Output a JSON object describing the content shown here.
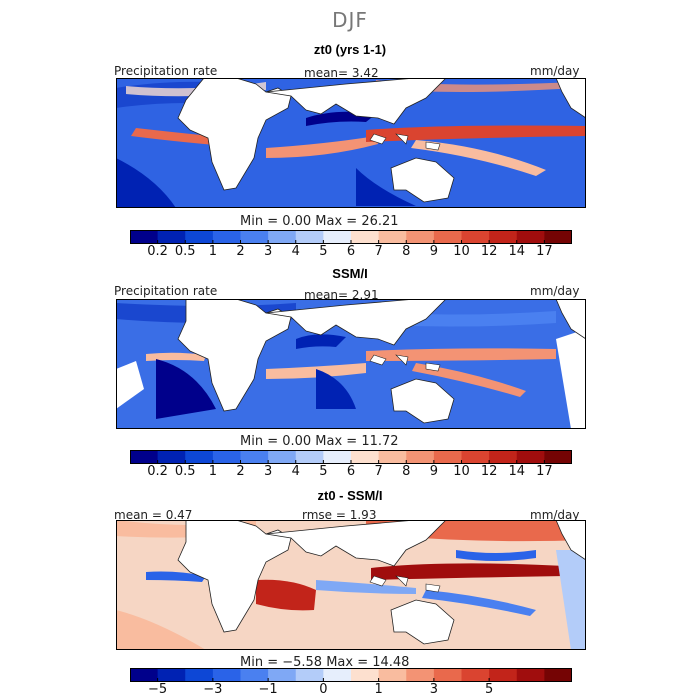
{
  "season": "DJF",
  "panels": [
    {
      "title": "zt0 (yrs 1-1)",
      "left_label": "Precipitation rate",
      "stat": "mean=   3.42",
      "units": "mm/day",
      "minmax": "Min =    0.00 Max =  26.21"
    },
    {
      "title": "SSM/I",
      "left_label": "Precipitation rate",
      "stat": "mean=   2.91",
      "units": "mm/day",
      "minmax": "Min =    0.00 Max =  11.72"
    },
    {
      "title": "zt0 - SSM/I",
      "left_label": "mean =   0.47",
      "stat": "rmse =   1.93",
      "units": "mm/day",
      "minmax": "Min =  −5.58 Max =  14.48"
    }
  ],
  "colorbar_abs": {
    "colors": [
      "#00008b",
      "#0022b3",
      "#0d47d6",
      "#2a63e8",
      "#4a80f0",
      "#7fa8f5",
      "#b3ccf9",
      "#e6eefc",
      "#fde0cf",
      "#f9bc9f",
      "#f39374",
      "#e9694c",
      "#da4430",
      "#c2241a",
      "#a00d0d",
      "#750404"
    ],
    "ticks": [
      "0.2",
      "0.5",
      "1",
      "2",
      "3",
      "4",
      "5",
      "6",
      "7",
      "8",
      "9",
      "10",
      "12",
      "14",
      "17"
    ]
  },
  "colorbar_diff": {
    "colors": [
      "#00008b",
      "#0022b3",
      "#0d47d6",
      "#2a63e8",
      "#4a80f0",
      "#7fa8f5",
      "#b3ccf9",
      "#e6eefc",
      "#fde0cf",
      "#f9bc9f",
      "#f39374",
      "#e9694c",
      "#da4430",
      "#c2241a",
      "#a00d0d",
      "#750404"
    ],
    "ticks": [
      "−5",
      "−3",
      "−1",
      "0",
      "1",
      "3",
      "5"
    ]
  },
  "map_colors": {
    "land": "#ffffff",
    "ocean_abs": "#2f63e3",
    "ocean_diff": "#f6d6c4"
  }
}
